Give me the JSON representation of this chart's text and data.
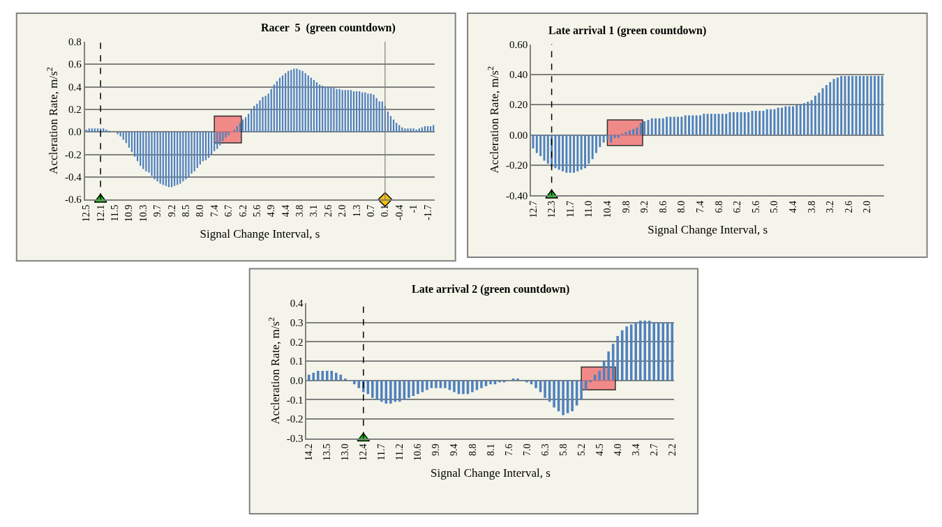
{
  "chart_data": [
    {
      "type": "bar",
      "title": "Racer  5  (green countdown)",
      "xlabel": "Signal Change Interval, s",
      "ylabel": "Accleration Rate, m/s$^{2}$",
      "categories": [
        "12.5",
        null,
        null,
        null,
        null,
        "12.1",
        null,
        null,
        null,
        null,
        "11.5",
        null,
        null,
        null,
        null,
        "10.9",
        null,
        null,
        null,
        null,
        "10.3",
        null,
        null,
        null,
        null,
        "9.7",
        null,
        null,
        null,
        null,
        "9.2",
        null,
        null,
        null,
        null,
        "8.5",
        null,
        null,
        null,
        null,
        "8.0",
        null,
        null,
        null,
        null,
        "7.4",
        null,
        null,
        null,
        null,
        "6.7",
        null,
        null,
        null,
        null,
        "6.2",
        null,
        null,
        null,
        null,
        "5.6",
        null,
        null,
        null,
        null,
        "4.9",
        null,
        null,
        null,
        null,
        "4.4",
        null,
        null,
        null,
        null,
        "3.8",
        null,
        null,
        null,
        null,
        "3.1",
        null,
        null,
        null,
        null,
        "2.6",
        null,
        null,
        null,
        null,
        "2.0",
        null,
        null,
        null,
        null,
        "1.3",
        null,
        null,
        null,
        null,
        "0.7",
        null,
        null,
        null,
        null,
        "0.1",
        null,
        null,
        null,
        null,
        "-0.4",
        null,
        null,
        null,
        null,
        "-1",
        null,
        null,
        null,
        null,
        "-1.7",
        null,
        null
      ],
      "series": [
        {
          "color": "#4f81bd",
          "values": [
            0.02,
            0.03,
            0.03,
            0.03,
            0.03,
            0.03,
            0.03,
            0.02,
            0.01,
            0.0,
            0.0,
            -0.02,
            -0.04,
            -0.07,
            -0.1,
            -0.14,
            -0.18,
            -0.22,
            -0.26,
            -0.3,
            -0.33,
            -0.35,
            -0.36,
            -0.39,
            -0.42,
            -0.44,
            -0.46,
            -0.47,
            -0.48,
            -0.49,
            -0.49,
            -0.48,
            -0.47,
            -0.46,
            -0.44,
            -0.42,
            -0.4,
            -0.37,
            -0.35,
            -0.32,
            -0.29,
            -0.26,
            -0.25,
            -0.23,
            -0.2,
            -0.17,
            -0.15,
            -0.12,
            -0.08,
            -0.05,
            -0.03,
            0.0,
            0.02,
            0.05,
            0.08,
            0.11,
            0.13,
            0.16,
            0.2,
            0.23,
            0.25,
            0.28,
            0.31,
            0.32,
            0.34,
            0.38,
            0.42,
            0.45,
            0.48,
            0.5,
            0.52,
            0.54,
            0.55,
            0.56,
            0.56,
            0.55,
            0.54,
            0.52,
            0.5,
            0.48,
            0.46,
            0.44,
            0.42,
            0.41,
            0.4,
            0.4,
            0.4,
            0.39,
            0.38,
            0.38,
            0.37,
            0.37,
            0.37,
            0.37,
            0.36,
            0.36,
            0.36,
            0.35,
            0.35,
            0.34,
            0.34,
            0.33,
            0.3,
            0.27,
            0.27,
            0.23,
            0.18,
            0.14,
            0.11,
            0.08,
            0.06,
            0.04,
            0.03,
            0.03,
            0.03,
            0.03,
            0.02,
            0.03,
            0.04,
            0.05,
            0.05,
            0.05,
            0.06
          ]
        },
        {
          "type": "scatter",
          "color": "#00cc00",
          "marker": "triangle",
          "values": [
            null,
            null,
            null,
            null,
            null,
            -0.6,
            null,
            null,
            null,
            null,
            null,
            null,
            null,
            null,
            null,
            null,
            null,
            null,
            null,
            null,
            null,
            null,
            null,
            null,
            null,
            null,
            null,
            null,
            null,
            null,
            null,
            null,
            null,
            null,
            null,
            null,
            null,
            null,
            null,
            null,
            null,
            null,
            null,
            null,
            null,
            null,
            null,
            null,
            null,
            null,
            null,
            null,
            null,
            null,
            null,
            null,
            null,
            null,
            null,
            null,
            null,
            null,
            null,
            null,
            null,
            null,
            null,
            null,
            null,
            null,
            null,
            null,
            null,
            null,
            null,
            null,
            null,
            null,
            null,
            null,
            null,
            null,
            null,
            null,
            null,
            null,
            null,
            null,
            null,
            null,
            null,
            null,
            null,
            null,
            null,
            null,
            null,
            null,
            null,
            null,
            null,
            null,
            null,
            null,
            null,
            null,
            null,
            null,
            null,
            null,
            null,
            null,
            null,
            null,
            null,
            null,
            null,
            null,
            null,
            null,
            null,
            null,
            null
          ]
        },
        {
          "type": "scatter",
          "color": "#ffc000",
          "marker": "diamond",
          "values": [
            null,
            null,
            null,
            null,
            null,
            null,
            null,
            null,
            null,
            null,
            null,
            null,
            null,
            null,
            null,
            null,
            null,
            null,
            null,
            null,
            null,
            null,
            null,
            null,
            null,
            null,
            null,
            null,
            null,
            null,
            null,
            null,
            null,
            null,
            null,
            null,
            null,
            null,
            null,
            null,
            null,
            null,
            null,
            null,
            null,
            null,
            null,
            null,
            null,
            null,
            null,
            null,
            null,
            null,
            null,
            null,
            null,
            null,
            null,
            null,
            null,
            null,
            null,
            null,
            null,
            null,
            null,
            null,
            null,
            null,
            null,
            null,
            null,
            null,
            null,
            null,
            null,
            null,
            null,
            null,
            null,
            null,
            null,
            null,
            null,
            null,
            null,
            null,
            null,
            null,
            null,
            null,
            null,
            null,
            null,
            null,
            null,
            null,
            null,
            null,
            null,
            null,
            null,
            null,
            null,
            -0.6,
            null,
            null,
            null,
            null,
            null,
            null,
            null,
            null,
            null,
            null,
            null,
            null,
            null,
            null,
            null,
            null,
            null
          ]
        }
      ],
      "ylim": [
        -0.6,
        0.8
      ],
      "yticks": [
        {
          "value": -0.6,
          "label": "-0.6"
        },
        {
          "value": -0.4,
          "label": "-0.4"
        },
        {
          "value": -0.2,
          "label": "-0.2"
        },
        {
          "value": 0,
          "label": "0.0"
        },
        0.2,
        0.4,
        0.6,
        0.8
      ],
      "grid": "y",
      "ref_lines": [
        {
          "axis": "x",
          "value": "12.1",
          "color": "#000000",
          "line_style": "dashed"
        },
        {
          "axis": "x",
          "value": "0.1",
          "color": "#7f7f7f",
          "line_style": "solid"
        }
      ],
      "bands": [
        {
          "axis": "x",
          "from": "7.4",
          "to": "6.2",
          "color": "#f07070"
        }
      ]
    },
    {
      "type": "bar",
      "title": "Late arrival 1 (green countdown)",
      "xlabel": "Signal Change Interval, s",
      "ylabel": "Accleration Rate, m/s$^{2}$",
      "categories": [
        "12.7",
        null,
        null,
        null,
        null,
        "12.3",
        null,
        null,
        null,
        null,
        "11.7",
        null,
        null,
        null,
        null,
        "11.0",
        null,
        null,
        null,
        null,
        "10.4",
        null,
        null,
        null,
        null,
        "9.8",
        null,
        null,
        null,
        null,
        "9.2",
        null,
        null,
        null,
        null,
        "8.6",
        null,
        null,
        null,
        null,
        "8.0",
        null,
        null,
        null,
        null,
        "7.4",
        null,
        null,
        null,
        null,
        "6.8",
        null,
        null,
        null,
        null,
        "6.2",
        null,
        null,
        null,
        null,
        "5.6",
        null,
        null,
        null,
        null,
        "5.0",
        null,
        null,
        null,
        null,
        "4.4",
        null,
        null,
        null,
        null,
        "3.8",
        null,
        null,
        null,
        null,
        "3.2",
        null,
        null,
        null,
        null,
        "2.6",
        null,
        null,
        null,
        null,
        "2.0",
        null,
        null,
        null,
        null
      ],
      "series": [
        {
          "color": "#4f81bd",
          "values": [
            -0.09,
            -0.12,
            -0.14,
            -0.17,
            -0.19,
            -0.21,
            -0.22,
            -0.23,
            -0.24,
            -0.25,
            -0.25,
            -0.25,
            -0.24,
            -0.23,
            -0.22,
            -0.19,
            -0.16,
            -0.12,
            -0.08,
            -0.05,
            -0.03,
            -0.05,
            -0.02,
            -0.02,
            0.01,
            0.02,
            0.03,
            0.04,
            0.05,
            0.08,
            0.09,
            0.1,
            0.11,
            0.11,
            0.11,
            0.11,
            0.12,
            0.12,
            0.12,
            0.12,
            0.12,
            0.13,
            0.13,
            0.13,
            0.13,
            0.13,
            0.14,
            0.14,
            0.14,
            0.14,
            0.14,
            0.14,
            0.14,
            0.15,
            0.15,
            0.15,
            0.15,
            0.15,
            0.15,
            0.16,
            0.16,
            0.16,
            0.16,
            0.17,
            0.17,
            0.17,
            0.18,
            0.18,
            0.19,
            0.19,
            0.19,
            0.2,
            0.2,
            0.21,
            0.22,
            0.23,
            0.26,
            0.28,
            0.31,
            0.33,
            0.35,
            0.37,
            0.38,
            0.39,
            0.39,
            0.39,
            0.39,
            0.39,
            0.39,
            0.39,
            0.39,
            0.39,
            0.39,
            0.39,
            0.39
          ]
        },
        {
          "type": "scatter",
          "color": "#00cc00",
          "marker": "triangle",
          "values": [
            null,
            null,
            null,
            null,
            null,
            -0.4,
            null,
            null,
            null,
            null,
            null,
            null,
            null,
            null,
            null,
            null,
            null,
            null,
            null,
            null,
            null,
            null,
            null,
            null,
            null,
            null,
            null,
            null,
            null,
            null,
            null,
            null,
            null,
            null,
            null,
            null,
            null,
            null,
            null,
            null,
            null,
            null,
            null,
            null,
            null,
            null,
            null,
            null,
            null,
            null,
            null,
            null,
            null,
            null,
            null,
            null,
            null,
            null,
            null,
            null,
            null,
            null,
            null,
            null,
            null,
            null,
            null,
            null,
            null,
            null,
            null,
            null,
            null,
            null,
            null,
            null,
            null,
            null,
            null,
            null,
            null,
            null,
            null,
            null,
            null,
            null,
            null,
            null,
            null,
            null,
            null,
            null,
            null,
            null,
            null
          ]
        }
      ],
      "ylim": [
        -0.4,
        0.6
      ],
      "yticks": [
        {
          "value": -0.4,
          "label": "-0.40"
        },
        {
          "value": -0.2,
          "label": "-0.20"
        },
        {
          "value": 0,
          "label": "0.00"
        },
        {
          "value": 0.2,
          "label": "0.20"
        },
        {
          "value": 0.4,
          "label": "0.40"
        },
        {
          "value": 0.6,
          "label": "0.60"
        }
      ],
      "grid": "y",
      "ref_lines": [
        {
          "axis": "x",
          "value": "12.3",
          "color": "#000000",
          "line_style": "dashed"
        }
      ],
      "bands": [
        {
          "axis": "x",
          "from": "10.4",
          "to": "9.2",
          "color": "#f07070"
        }
      ]
    },
    {
      "type": "bar",
      "title": "Late arrival 2 (green countdown)",
      "xlabel": "Signal Change Interval, s",
      "ylabel": "Accleration Rate, m/s$^{2}$",
      "categories": [
        "14.2",
        null,
        null,
        null,
        "13.5",
        null,
        null,
        null,
        "13.0",
        null,
        null,
        null,
        "12.4",
        null,
        null,
        null,
        "11.7",
        null,
        null,
        null,
        "11.2",
        null,
        null,
        null,
        "10.6",
        null,
        null,
        null,
        "9.9",
        null,
        null,
        null,
        "9.4",
        null,
        null,
        null,
        "8.8",
        null,
        null,
        null,
        "8.1",
        null,
        null,
        null,
        "7.6",
        null,
        null,
        null,
        "7.0",
        null,
        null,
        null,
        "6.3",
        null,
        null,
        null,
        "5.8",
        null,
        null,
        null,
        "5.2",
        null,
        null,
        null,
        "4.5",
        null,
        null,
        null,
        "4.0",
        null,
        null,
        null,
        "3.4",
        null,
        null,
        null,
        "2.7",
        null,
        null,
        null,
        "2.2"
      ],
      "series": [
        {
          "color": "#4f81bd",
          "values": [
            0.03,
            0.04,
            0.05,
            0.05,
            0.05,
            0.05,
            0.04,
            0.03,
            0.01,
            0.0,
            -0.02,
            -0.04,
            -0.06,
            -0.07,
            -0.09,
            -0.1,
            -0.11,
            -0.12,
            -0.12,
            -0.11,
            -0.11,
            -0.1,
            -0.09,
            -0.08,
            -0.07,
            -0.06,
            -0.05,
            -0.04,
            -0.04,
            -0.04,
            -0.04,
            -0.05,
            -0.06,
            -0.07,
            -0.07,
            -0.07,
            -0.06,
            -0.05,
            -0.04,
            -0.03,
            -0.02,
            -0.02,
            -0.01,
            -0.01,
            0.0,
            0.01,
            0.01,
            0.0,
            -0.01,
            -0.02,
            -0.04,
            -0.06,
            -0.09,
            -0.11,
            -0.14,
            -0.16,
            -0.18,
            -0.17,
            -0.16,
            -0.13,
            -0.1,
            -0.05,
            -0.01,
            0.03,
            0.05,
            0.1,
            0.15,
            0.19,
            0.23,
            0.26,
            0.28,
            0.29,
            0.3,
            0.31,
            0.31,
            0.31,
            0.3,
            0.3,
            0.3,
            0.3,
            0.3
          ]
        },
        {
          "type": "scatter",
          "color": "#00cc00",
          "marker": "triangle",
          "values": [
            null,
            null,
            null,
            null,
            null,
            null,
            null,
            null,
            null,
            null,
            null,
            null,
            -0.3,
            null,
            null,
            null,
            null,
            null,
            null,
            null,
            null,
            null,
            null,
            null,
            null,
            null,
            null,
            null,
            null,
            null,
            null,
            null,
            null,
            null,
            null,
            null,
            null,
            null,
            null,
            null,
            null,
            null,
            null,
            null,
            null,
            null,
            null,
            null,
            null,
            null,
            null,
            null,
            null,
            null,
            null,
            null,
            null,
            null,
            null,
            null,
            null,
            null,
            null,
            null,
            null,
            null,
            null,
            null,
            null,
            null,
            null,
            null,
            null,
            null,
            null,
            null,
            null,
            null,
            null,
            null,
            null
          ]
        }
      ],
      "ylim": [
        -0.3,
        0.4
      ],
      "yticks": [
        {
          "value": -0.3,
          "label": "-0.3"
        },
        {
          "value": -0.2,
          "label": "-0.2"
        },
        {
          "value": -0.1,
          "label": "-0.1"
        },
        {
          "value": 0,
          "label": "0.0"
        },
        0.1,
        0.2,
        0.3,
        0.4
      ],
      "grid": "y",
      "ref_lines": [
        {
          "axis": "x",
          "value": "12.4",
          "color": "#000000",
          "line_style": "dashed"
        }
      ],
      "bands": [
        {
          "axis": "x",
          "from": "5.2",
          "to": "4.0",
          "color": "#f07070"
        }
      ]
    }
  ]
}
